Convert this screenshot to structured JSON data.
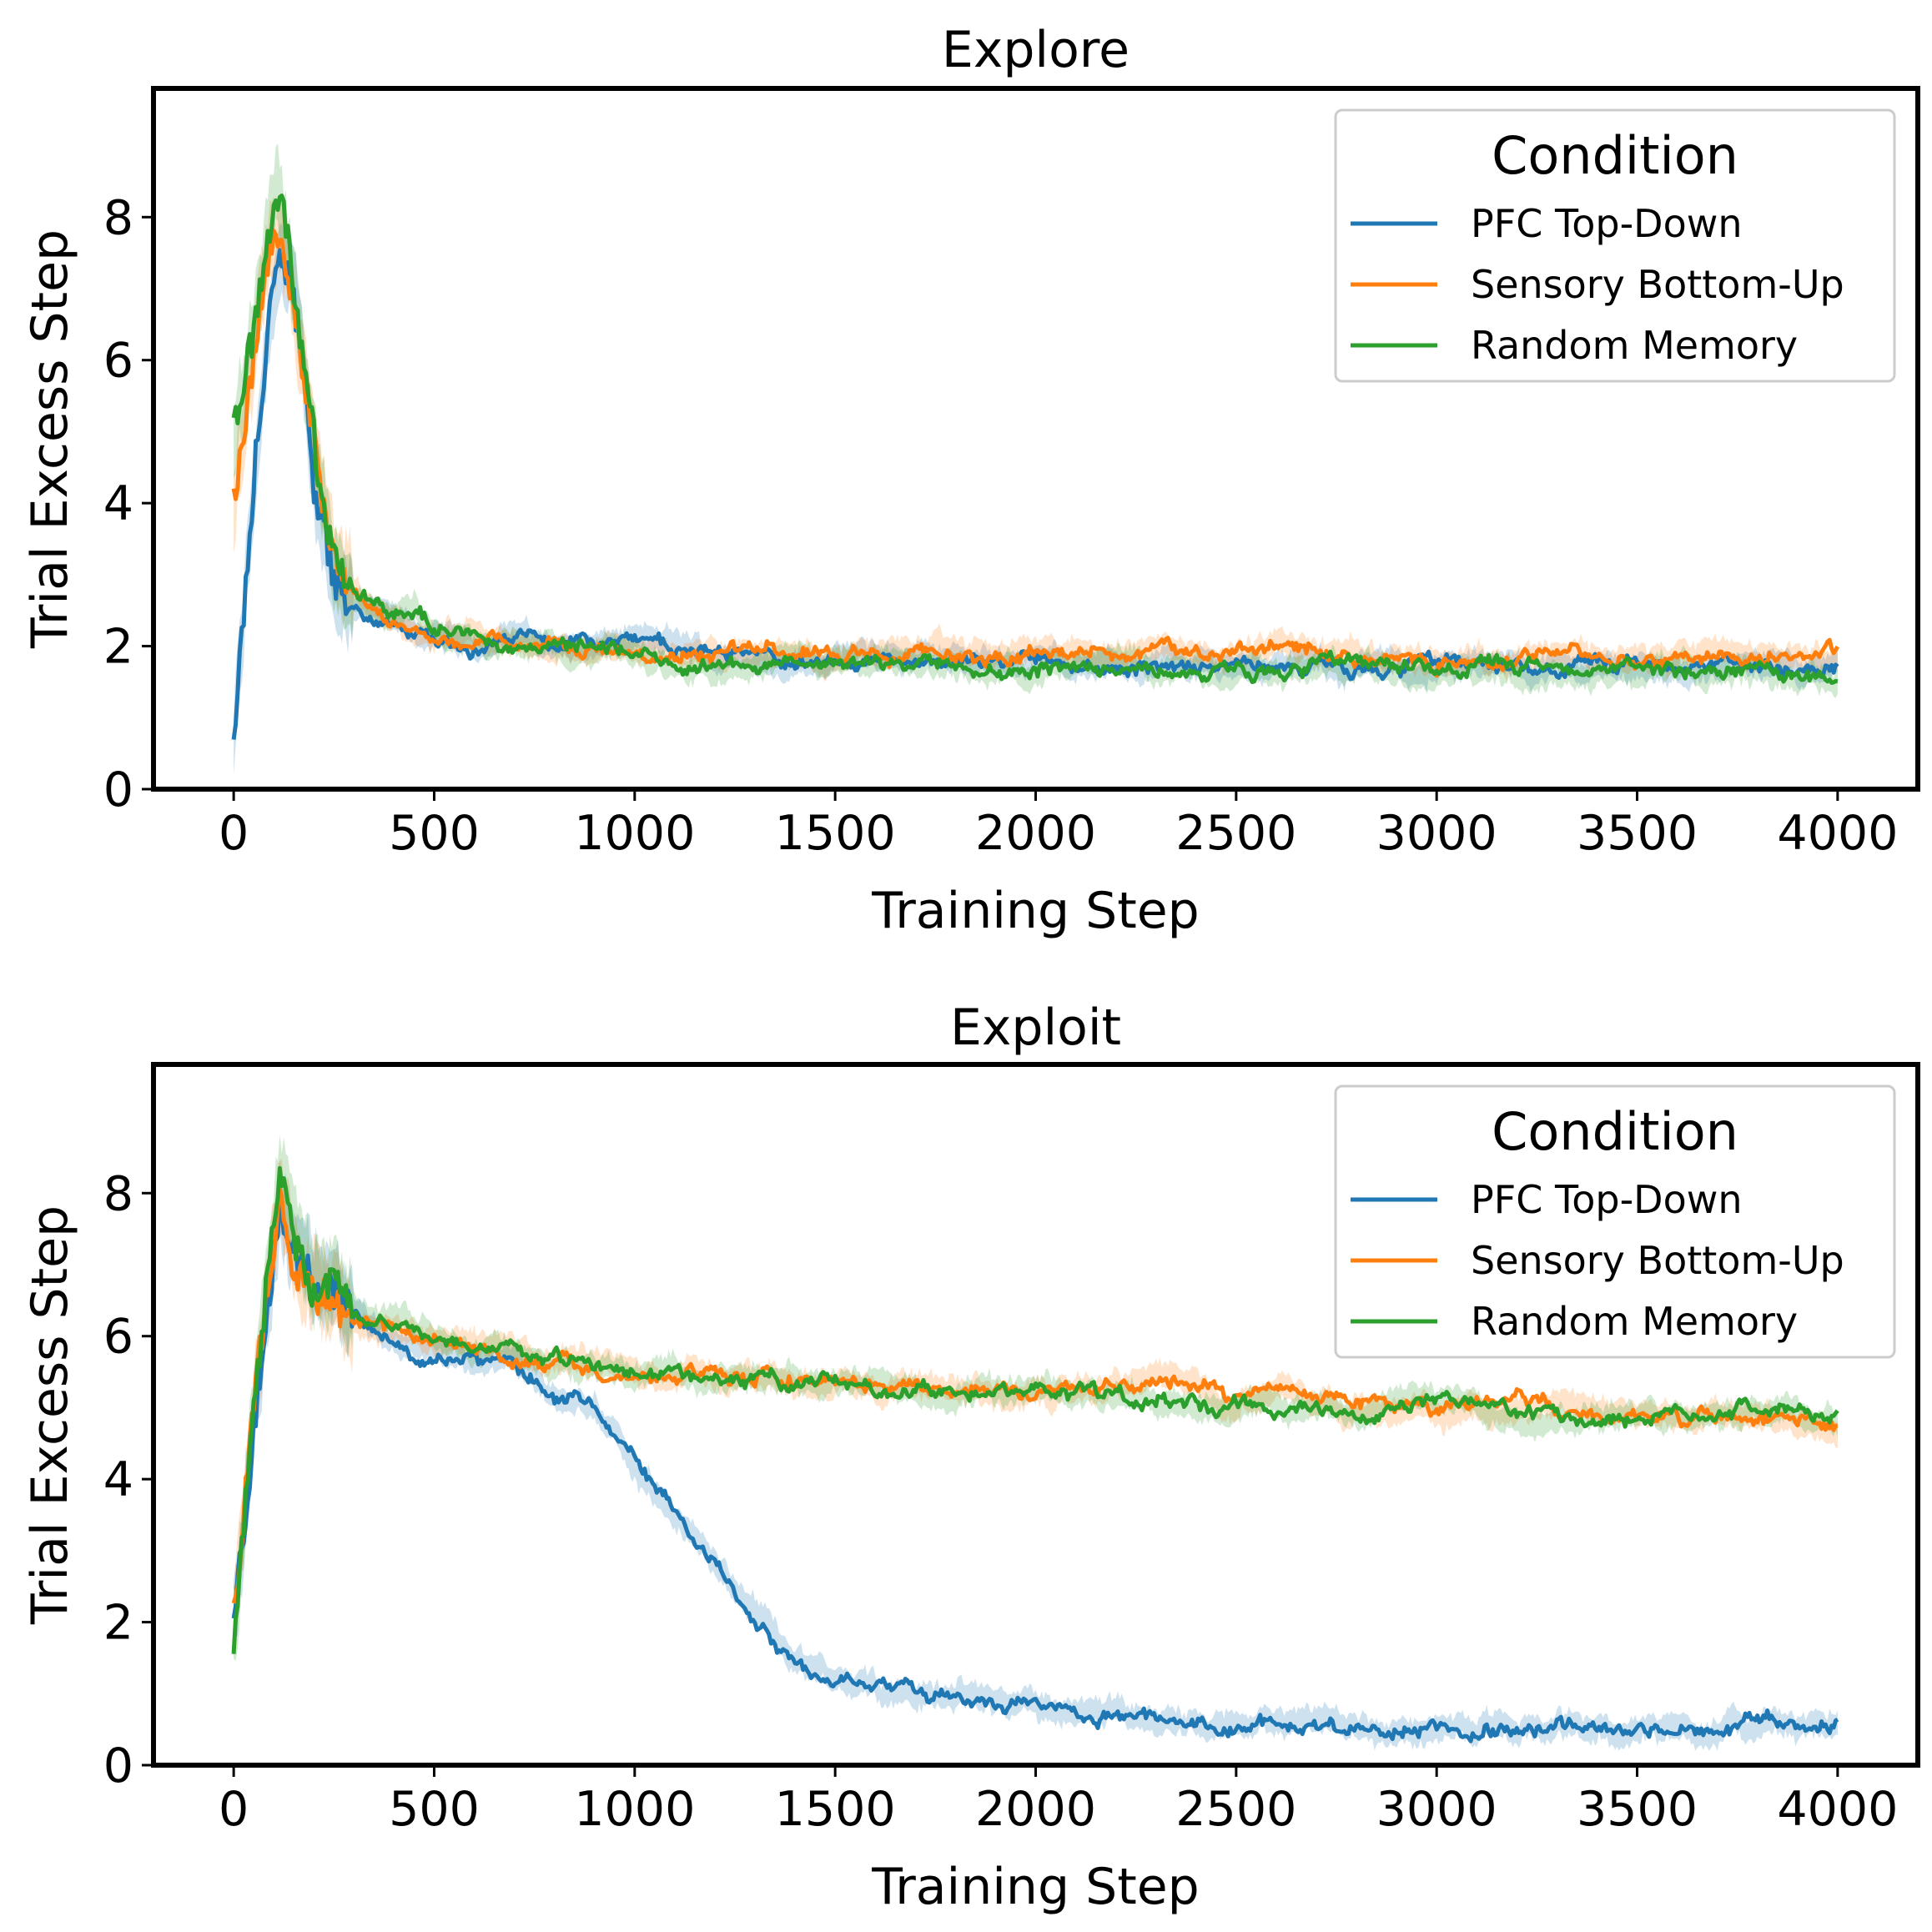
{
  "colors": {
    "pfc": "#1f77b4",
    "sensory": "#ff7f0e",
    "random": "#2ca02c"
  },
  "chart_data": [
    {
      "type": "line",
      "title": "Explore",
      "xlabel": "Training Step",
      "ylabel": "Trial Excess Step",
      "xlim": [
        -200,
        4200
      ],
      "ylim": [
        0,
        9.8
      ],
      "xticks": [
        0,
        500,
        1000,
        1500,
        2000,
        2500,
        3000,
        3500,
        4000
      ],
      "yticks": [
        0,
        2,
        4,
        6,
        8
      ],
      "grid": false,
      "legend": {
        "title": "Condition",
        "placement": "top-right"
      },
      "series": [
        {
          "name": "PFC Top-Down",
          "color": "#1f77b4",
          "points": [
            [
              0,
              0.6
            ],
            [
              40,
              3.5
            ],
            [
              80,
              6.0
            ],
            [
              110,
              7.4
            ],
            [
              140,
              7.2
            ],
            [
              170,
              6.0
            ],
            [
              200,
              4.2
            ],
            [
              250,
              3.0
            ],
            [
              300,
              2.6
            ],
            [
              400,
              2.3
            ],
            [
              500,
              2.1
            ],
            [
              600,
              2.0
            ],
            [
              700,
              2.2
            ],
            [
              800,
              2.0
            ],
            [
              900,
              1.95
            ],
            [
              1000,
              2.1
            ],
            [
              1100,
              2.0
            ],
            [
              1200,
              1.85
            ],
            [
              1400,
              1.8
            ],
            [
              1600,
              1.85
            ],
            [
              1800,
              1.8
            ],
            [
              2000,
              1.8
            ],
            [
              2200,
              1.75
            ],
            [
              2400,
              1.75
            ],
            [
              2600,
              1.75
            ],
            [
              2800,
              1.7
            ],
            [
              3000,
              1.7
            ],
            [
              3200,
              1.7
            ],
            [
              3400,
              1.7
            ],
            [
              3600,
              1.7
            ],
            [
              3800,
              1.7
            ],
            [
              4000,
              1.72
            ]
          ]
        },
        {
          "name": "Sensory Bottom-Up",
          "color": "#ff7f0e",
          "points": [
            [
              0,
              4.0
            ],
            [
              30,
              5.2
            ],
            [
              60,
              6.5
            ],
            [
              90,
              7.4
            ],
            [
              120,
              7.6
            ],
            [
              150,
              6.8
            ],
            [
              180,
              5.6
            ],
            [
              220,
              4.0
            ],
            [
              260,
              3.0
            ],
            [
              300,
              2.7
            ],
            [
              400,
              2.3
            ],
            [
              500,
              2.15
            ],
            [
              600,
              2.05
            ],
            [
              800,
              2.0
            ],
            [
              1000,
              1.9
            ],
            [
              1200,
              1.9
            ],
            [
              1300,
              2.0
            ],
            [
              1500,
              1.85
            ],
            [
              1700,
              1.95
            ],
            [
              1900,
              1.85
            ],
            [
              2000,
              1.95
            ],
            [
              2200,
              1.85
            ],
            [
              2300,
              2.0
            ],
            [
              2500,
              1.85
            ],
            [
              2600,
              2.0
            ],
            [
              2800,
              1.85
            ],
            [
              3000,
              1.8
            ],
            [
              3200,
              1.85
            ],
            [
              3300,
              1.95
            ],
            [
              3500,
              1.8
            ],
            [
              3700,
              1.85
            ],
            [
              4000,
              1.9
            ]
          ]
        },
        {
          "name": "Random Memory",
          "color": "#2ca02c",
          "points": [
            [
              0,
              5.0
            ],
            [
              30,
              5.8
            ],
            [
              60,
              6.8
            ],
            [
              90,
              7.9
            ],
            [
              110,
              8.3
            ],
            [
              130,
              7.8
            ],
            [
              160,
              6.5
            ],
            [
              200,
              4.9
            ],
            [
              240,
              3.4
            ],
            [
              300,
              2.7
            ],
            [
              400,
              2.4
            ],
            [
              450,
              2.6
            ],
            [
              500,
              2.2
            ],
            [
              600,
              2.05
            ],
            [
              800,
              2.0
            ],
            [
              1000,
              1.9
            ],
            [
              1100,
              1.75
            ],
            [
              1300,
              1.8
            ],
            [
              1500,
              1.8
            ],
            [
              1700,
              1.75
            ],
            [
              1900,
              1.7
            ],
            [
              2100,
              1.75
            ],
            [
              2300,
              1.65
            ],
            [
              2500,
              1.65
            ],
            [
              2700,
              1.7
            ],
            [
              2900,
              1.7
            ],
            [
              3100,
              1.7
            ],
            [
              3300,
              1.65
            ],
            [
              3500,
              1.65
            ],
            [
              3700,
              1.7
            ],
            [
              3900,
              1.6
            ],
            [
              4000,
              1.55
            ]
          ]
        }
      ]
    },
    {
      "type": "line",
      "title": "Exploit",
      "xlabel": "Training Step",
      "ylabel": "Trial Excess Step",
      "xlim": [
        -200,
        4200
      ],
      "ylim": [
        0,
        9.8
      ],
      "xticks": [
        0,
        500,
        1000,
        1500,
        2000,
        2500,
        3000,
        3500,
        4000
      ],
      "yticks": [
        0,
        2,
        4,
        6,
        8
      ],
      "grid": false,
      "legend": {
        "title": "Condition",
        "placement": "top-right"
      },
      "series": [
        {
          "name": "PFC Top-Down",
          "color": "#1f77b4",
          "points": [
            [
              0,
              1.9
            ],
            [
              40,
              4.2
            ],
            [
              80,
              6.2
            ],
            [
              115,
              7.8
            ],
            [
              150,
              7.2
            ],
            [
              200,
              6.8
            ],
            [
              300,
              6.3
            ],
            [
              400,
              5.9
            ],
            [
              500,
              5.75
            ],
            [
              600,
              5.7
            ],
            [
              700,
              5.7
            ],
            [
              800,
              5.2
            ],
            [
              900,
              5.0
            ],
            [
              950,
              4.6
            ],
            [
              1000,
              4.2
            ],
            [
              1100,
              3.5
            ],
            [
              1200,
              2.8
            ],
            [
              1300,
              2.1
            ],
            [
              1400,
              1.5
            ],
            [
              1500,
              1.25
            ],
            [
              1600,
              1.1
            ],
            [
              1700,
              1.0
            ],
            [
              1800,
              0.95
            ],
            [
              1900,
              0.9
            ],
            [
              2000,
              0.85
            ],
            [
              2100,
              0.7
            ],
            [
              2300,
              0.7
            ],
            [
              2400,
              0.6
            ],
            [
              2600,
              0.55
            ],
            [
              2800,
              0.55
            ],
            [
              3000,
              0.5
            ],
            [
              3200,
              0.55
            ],
            [
              3400,
              0.5
            ],
            [
              3600,
              0.5
            ],
            [
              3800,
              0.55
            ],
            [
              4000,
              0.55
            ]
          ]
        },
        {
          "name": "Sensory Bottom-Up",
          "color": "#ff7f0e",
          "points": [
            [
              0,
              2.0
            ],
            [
              40,
              4.5
            ],
            [
              80,
              6.5
            ],
            [
              115,
              8.0
            ],
            [
              150,
              7.1
            ],
            [
              200,
              6.6
            ],
            [
              300,
              6.2
            ],
            [
              400,
              6.0
            ],
            [
              500,
              5.9
            ],
            [
              600,
              5.8
            ],
            [
              700,
              5.8
            ],
            [
              800,
              5.6
            ],
            [
              1000,
              5.5
            ],
            [
              1200,
              5.45
            ],
            [
              1400,
              5.4
            ],
            [
              1600,
              5.3
            ],
            [
              1800,
              5.25
            ],
            [
              2000,
              5.2
            ],
            [
              2200,
              5.3
            ],
            [
              2300,
              5.45
            ],
            [
              2500,
              5.1
            ],
            [
              2600,
              5.3
            ],
            [
              2800,
              5.0
            ],
            [
              3000,
              4.95
            ],
            [
              3200,
              5.05
            ],
            [
              3400,
              4.95
            ],
            [
              3600,
              4.9
            ],
            [
              3800,
              4.9
            ],
            [
              4000,
              4.7
            ]
          ]
        },
        {
          "name": "Random Memory",
          "color": "#2ca02c",
          "points": [
            [
              0,
              1.8
            ],
            [
              40,
              4.4
            ],
            [
              80,
              6.6
            ],
            [
              115,
              8.5
            ],
            [
              150,
              7.4
            ],
            [
              200,
              6.8
            ],
            [
              300,
              6.4
            ],
            [
              400,
              6.2
            ],
            [
              500,
              6.0
            ],
            [
              600,
              5.85
            ],
            [
              700,
              5.8
            ],
            [
              800,
              5.6
            ],
            [
              1000,
              5.5
            ],
            [
              1200,
              5.4
            ],
            [
              1400,
              5.4
            ],
            [
              1600,
              5.3
            ],
            [
              1800,
              5.2
            ],
            [
              2000,
              5.2
            ],
            [
              2200,
              5.15
            ],
            [
              2400,
              5.1
            ],
            [
              2600,
              5.0
            ],
            [
              2800,
              5.0
            ],
            [
              3000,
              5.1
            ],
            [
              3200,
              4.9
            ],
            [
              3400,
              4.85
            ],
            [
              3600,
              4.9
            ],
            [
              3800,
              5.0
            ],
            [
              4000,
              4.85
            ]
          ]
        }
      ]
    }
  ]
}
